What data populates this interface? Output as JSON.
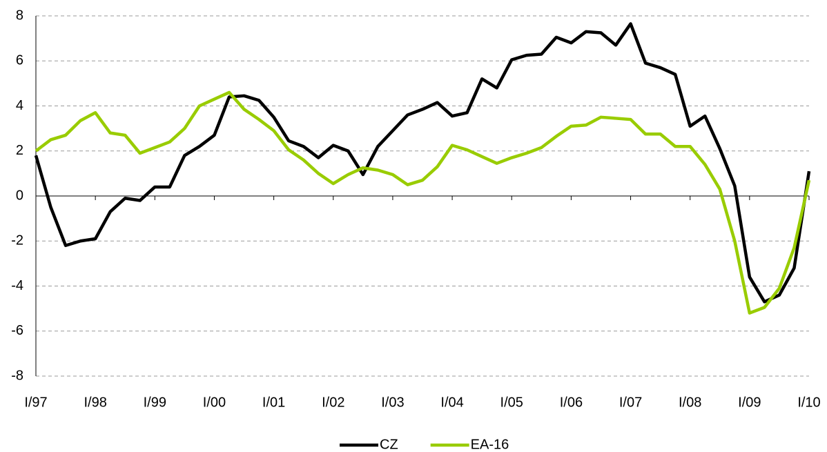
{
  "chart_data": {
    "type": "line",
    "categories": [
      "I/97",
      null,
      null,
      null,
      "I/98",
      null,
      null,
      null,
      "I/99",
      null,
      null,
      null,
      "I/00",
      null,
      null,
      null,
      "I/01",
      null,
      null,
      null,
      "I/02",
      null,
      null,
      null,
      "I/03",
      null,
      null,
      null,
      "I/04",
      null,
      null,
      null,
      "I/05",
      null,
      null,
      null,
      "I/06",
      null,
      null,
      null,
      "I/07",
      null,
      null,
      null,
      "I/08",
      null,
      null,
      null,
      "I/09",
      null,
      null,
      null,
      "I/10"
    ],
    "series": [
      {
        "name": "CZ",
        "color": "#000000",
        "values": [
          1.8,
          -0.5,
          -2.2,
          -2.0,
          -1.9,
          -0.7,
          -0.1,
          -0.2,
          0.4,
          0.4,
          1.8,
          2.2,
          2.7,
          4.4,
          4.45,
          4.25,
          3.5,
          2.45,
          2.2,
          1.7,
          2.25,
          2.0,
          0.95,
          2.2,
          2.9,
          3.6,
          3.85,
          4.15,
          3.55,
          3.7,
          5.2,
          4.8,
          6.05,
          6.25,
          6.3,
          7.05,
          6.8,
          7.3,
          7.25,
          6.7,
          7.65,
          5.9,
          5.7,
          5.4,
          3.1,
          3.55,
          2.1,
          0.45,
          -3.6,
          -4.7,
          -4.4,
          -3.2,
          1.1
        ]
      },
      {
        "name": "EA-16",
        "color": "#99cc00",
        "values": [
          2.0,
          2.5,
          2.7,
          3.35,
          3.7,
          2.8,
          2.7,
          1.9,
          2.15,
          2.4,
          3.0,
          4.0,
          4.3,
          4.6,
          3.85,
          3.4,
          2.9,
          2.05,
          1.6,
          1.0,
          0.55,
          0.95,
          1.25,
          1.15,
          0.95,
          0.5,
          0.7,
          1.3,
          2.25,
          2.05,
          1.75,
          1.45,
          1.7,
          1.9,
          2.15,
          2.65,
          3.1,
          3.15,
          3.5,
          3.45,
          3.4,
          2.75,
          2.75,
          2.2,
          2.2,
          1.4,
          0.3,
          -2.0,
          -5.2,
          -4.95,
          -4.1,
          -2.3,
          0.7
        ]
      }
    ],
    "ylim": [
      -8,
      8
    ],
    "yticks": [
      -8,
      -6,
      -4,
      -2,
      0,
      2,
      4,
      6,
      8
    ],
    "grid": true,
    "legend": "bottom"
  }
}
